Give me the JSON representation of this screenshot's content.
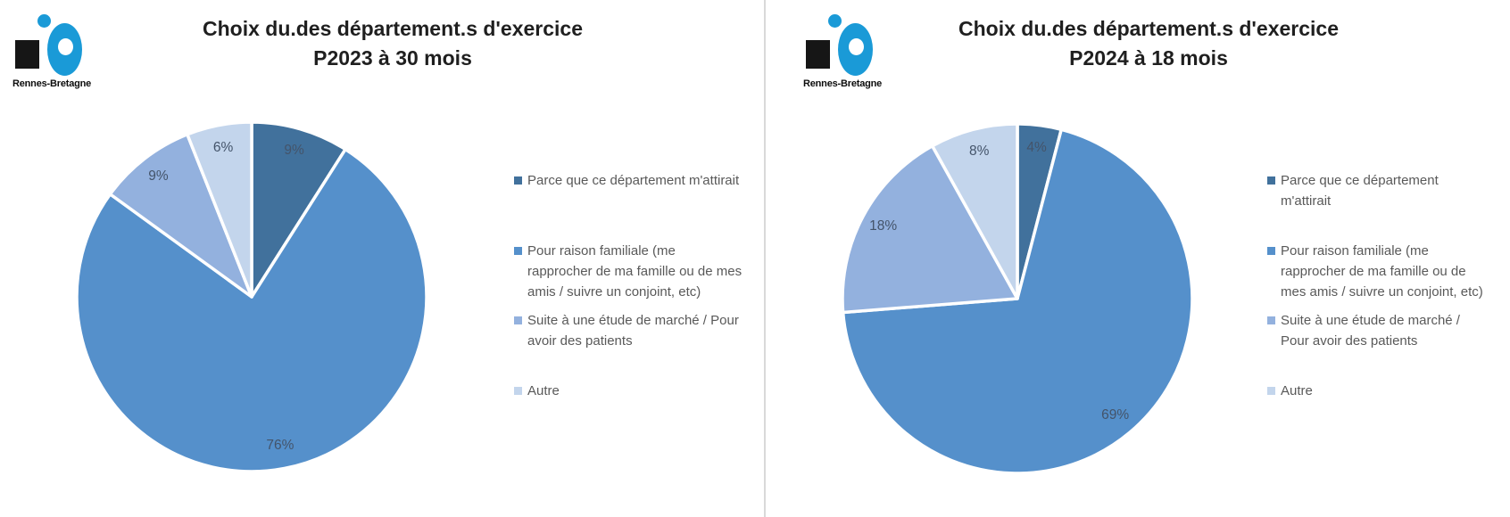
{
  "brand": "Rennes-Bretagne",
  "divider_color": "#d9d9d9",
  "palette": [
    "#41719C",
    "#5590CB",
    "#93B1DE",
    "#C3D5EC"
  ],
  "panels": [
    {
      "title_line1": "Choix du.des département.s d'exercice",
      "title_line2": "P2023 à 30 mois"
    },
    {
      "title_line1": "Choix du.des département.s d'exercice",
      "title_line2": "P2024 à 18 mois"
    }
  ],
  "chart_data": [
    {
      "type": "pie",
      "title": "Choix du.des département.s d'exercice P2023 à 30 mois",
      "categories": [
        "Parce que ce département m'attirait",
        "Pour raison familiale (me rapprocher de ma famille ou de mes amis / suivre un conjoint, etc)",
        "Suite à une étude de marché / Pour avoir des patients",
        "Autre"
      ],
      "values": [
        9,
        76,
        9,
        6
      ],
      "labels": [
        "9%",
        "76%",
        "9%",
        "6%"
      ],
      "colors": [
        "#41719C",
        "#5590CB",
        "#93B1DE",
        "#C3D5EC"
      ],
      "label_color": "#44546A",
      "legend_position": "right",
      "legend_lines": [
        [
          "Parce que ce département m'attirait"
        ],
        [
          "Pour raison familiale (me",
          "rapprocher de ma famille ou de mes",
          "amis / suivre un conjoint, etc)"
        ],
        [
          "Suite à une étude de marché / Pour",
          "avoir des patients"
        ],
        [
          "Autre"
        ]
      ]
    },
    {
      "type": "pie",
      "title": "Choix du.des département.s d'exercice P2024 à 18 mois",
      "categories": [
        "Parce que ce département m'attirait",
        "Pour raison familiale (me rapprocher de ma famille ou de mes amis / suivre un conjoint, etc)",
        "Suite à une étude de marché / Pour avoir des patients",
        "Autre"
      ],
      "values": [
        4,
        69,
        18,
        8
      ],
      "labels": [
        "4%",
        "69%",
        "18%",
        "8%"
      ],
      "colors": [
        "#41719C",
        "#5590CB",
        "#93B1DE",
        "#C3D5EC"
      ],
      "label_color": "#44546A",
      "legend_position": "right",
      "legend_lines": [
        [
          "Parce que ce département",
          "m'attirait"
        ],
        [
          "Pour raison familiale (me",
          "rapprocher de ma famille ou de",
          "mes amis / suivre un conjoint, etc)"
        ],
        [
          "Suite à une étude de marché /",
          "Pour avoir des patients"
        ],
        [
          "Autre"
        ]
      ]
    }
  ]
}
